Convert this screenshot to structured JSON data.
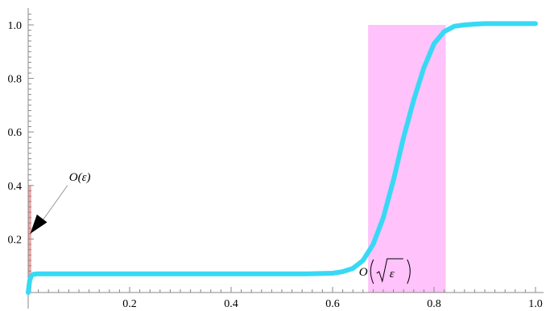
{
  "chart_data": {
    "type": "line",
    "title": "",
    "xlabel": "",
    "ylabel": "",
    "xlim": [
      0,
      1.0
    ],
    "ylim": [
      0,
      1.05
    ],
    "x_ticks": [
      0.2,
      0.4,
      0.6,
      0.8,
      1.0
    ],
    "x_tick_labels": [
      "0.2",
      "0.4",
      "0.6",
      "0.8",
      "1.0"
    ],
    "y_ticks": [
      0.2,
      0.4,
      0.6,
      0.8,
      1.0
    ],
    "y_tick_labels": [
      "0.2",
      "0.4",
      "0.6",
      "0.8",
      "1.0"
    ],
    "grid": false,
    "legend": "none",
    "series": [
      {
        "x": [
          0,
          0.003,
          0.006,
          0.01,
          0.02,
          0.05,
          0.1,
          0.2,
          0.3,
          0.4,
          0.5,
          0.55,
          0.6,
          0.62,
          0.64,
          0.66,
          0.68,
          0.7,
          0.72,
          0.74,
          0.76,
          0.78,
          0.8,
          0.82,
          0.84,
          0.86,
          0.88,
          0.9,
          0.95,
          1.0
        ],
        "values": [
          0,
          0.045,
          0.062,
          0.068,
          0.07,
          0.07,
          0.07,
          0.07,
          0.07,
          0.07,
          0.07,
          0.07,
          0.072,
          0.078,
          0.09,
          0.12,
          0.18,
          0.28,
          0.42,
          0.58,
          0.72,
          0.84,
          0.93,
          0.975,
          0.995,
          1.0,
          1.003,
          1.005,
          1.005,
          1.005
        ]
      }
    ],
    "regions": [
      {
        "x0": 0.0,
        "x1": 0.006,
        "y0": 0,
        "y1": 0.4,
        "color": "#f4a6a6"
      },
      {
        "x0": 0.67,
        "x1": 0.823,
        "y0": 0,
        "y1": 1.0,
        "color": "#ffc2fa"
      }
    ],
    "annotations": [
      {
        "text": "O(ε)",
        "at": [
          0.16,
          0.43
        ],
        "arrow_to": [
          0.004,
          0.22
        ]
      },
      {
        "text_prefix": "O",
        "text_radical": "ε",
        "at": [
          0.725,
          0.075
        ]
      }
    ],
    "colors": {
      "curve": "#38d9f5",
      "thin_region": "#f4a6a6",
      "wide_region": "#ffc2fa",
      "axis": "#888888"
    }
  }
}
